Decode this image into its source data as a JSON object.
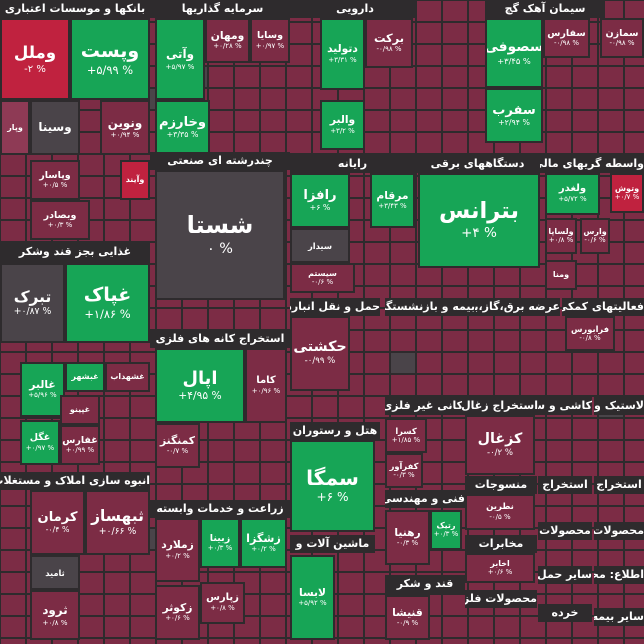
{
  "sectors": [
    {
      "title": "بانکها و موسسات اعتباری",
      "tiles": [
        {
          "name": "وملل",
          "change": "-۲ %"
        },
        {
          "name": "وپست",
          "change": "+۵/۹۹ %"
        },
        {
          "name": "ونوین",
          "change": "+۰/۹۴ %"
        },
        {
          "name": "وسینا"
        },
        {
          "name": "وپار"
        },
        {
          "name": "وآیند"
        },
        {
          "name": "وپاسار",
          "change": "+۰/۵ %"
        },
        {
          "name": "وبصادر",
          "change": "+۰/۳ %"
        }
      ]
    },
    {
      "title": "غذایی بجز قند وشکر",
      "tiles": [
        {
          "name": "تبرک",
          "change": "+۰/۸۷ %"
        },
        {
          "name": "غپاک",
          "change": "+۱/۸۶ %"
        },
        {
          "name": "غشهداب"
        },
        {
          "name": "غبشهر"
        },
        {
          "name": "غالبر",
          "change": "+۵/۹۶ %"
        },
        {
          "name": "غپینو"
        },
        {
          "name": "غگل",
          "change": "+۰/۹۷ %"
        },
        {
          "name": "غفارس",
          "change": "+۰/۹۹ %"
        }
      ]
    },
    {
      "title": "انبوه سازی املاک و مستغلات",
      "tiles": [
        {
          "name": "کرمان",
          "change": "-۰/۴ %"
        },
        {
          "name": "ثبهساز",
          "change": "+۰/۶۶ %"
        },
        {
          "name": "ثامید"
        },
        {
          "name": "ثرود",
          "change": "+۰/۸ %"
        }
      ]
    },
    {
      "title": "سرمایه گذاریها",
      "tiles": [
        {
          "name": "وآتی",
          "change": "+۵/۹۷ %"
        },
        {
          "name": "ومهان",
          "change": "+۰/۲۸ %"
        },
        {
          "name": "وسایا",
          "change": "+۰/۹۷ %"
        },
        {
          "name": "وخارزم",
          "change": "+۳/۳۵ %"
        }
      ]
    },
    {
      "title": "چندرشته ای صنعتی",
      "tiles": [
        {
          "name": "شستا",
          "change": "۰ %"
        }
      ]
    },
    {
      "title": "استخراج کانه های فلزی",
      "tiles": [
        {
          "name": "اپال",
          "change": "+۴/۹۵ %"
        },
        {
          "name": "کاما",
          "change": "+۰/۹۶ %"
        },
        {
          "name": "کمنگنز",
          "change": "-۰/۷ %"
        }
      ]
    },
    {
      "title": "زراعت و خدمات وابسته",
      "tiles": [
        {
          "name": "زملارد",
          "change": "+۰/۲ %"
        },
        {
          "name": "زبینا",
          "change": "+۰/۳ %"
        },
        {
          "name": "زشگزا",
          "change": "+۰/۲ %"
        },
        {
          "name": "زپارس",
          "change": "+۰/۸ %"
        },
        {
          "name": "زکوثر",
          "change": "+۰/۶ %"
        }
      ]
    },
    {
      "title": "دارویی",
      "tiles": [
        {
          "name": "دتولید",
          "change": "+۳/۳۱ %"
        },
        {
          "name": "برکت",
          "change": "-۰/۹۸ %"
        },
        {
          "name": "والبر",
          "change": "+۳/۲ %"
        }
      ]
    },
    {
      "title": "رایانه",
      "tiles": [
        {
          "name": "رافزا",
          "change": "+۶ %"
        },
        {
          "name": "مرقام",
          "change": "+۳/۴۳ %"
        },
        {
          "name": "سیدار"
        },
        {
          "name": "سیستم",
          "change": "-۰/۶ %"
        }
      ]
    },
    {
      "title": "حمل و نقل انبارداری",
      "tiles": [
        {
          "name": "حکشتی",
          "change": "-۰/۹۹ %"
        }
      ]
    },
    {
      "title": "هتل و رستوران",
      "tiles": [
        {
          "name": "سمگا",
          "change": "+۶ %"
        }
      ]
    },
    {
      "title": "ماشین آلات و",
      "tiles": [
        {
          "name": "لابسا",
          "change": "+۵/۹۲ %"
        }
      ]
    },
    {
      "title": "دستگاههای برقی",
      "tiles": [
        {
          "name": "بترانس",
          "change": "+۴ %"
        }
      ]
    },
    {
      "title": "سیمان آهک گچ",
      "tiles": [
        {
          "name": "سصوفی",
          "change": "+۳/۴۵ %"
        },
        {
          "name": "سفارس",
          "change": "-۰/۹۸ %"
        },
        {
          "name": "سمازن",
          "change": "-۰/۹۸ %"
        },
        {
          "name": "سفرب",
          "change": "+۲/۹۴ %"
        }
      ]
    },
    {
      "title": "واسطه گریهای مالی و",
      "tiles": [
        {
          "name": "ولغدر",
          "change": "+۵/۷۲ %"
        },
        {
          "name": "وتوش",
          "change": "+۰/۷ %"
        },
        {
          "name": "ولساپا",
          "change": "+۰/۸ %"
        },
        {
          "name": "وارس",
          "change": "-۰/۶ %"
        },
        {
          "name": "ومنا"
        }
      ]
    },
    {
      "title": "بیمه و بازنشستگی",
      "tiles": []
    },
    {
      "title": "عرضه برق،گاز،بخار",
      "tiles": []
    },
    {
      "title": "فعالیتهای کمکی",
      "tiles": [
        {
          "name": "فرابورس",
          "change": "-۰/۸ %"
        }
      ]
    },
    {
      "title": "کانی غیر فلزی",
      "tiles": [
        {
          "name": "کسرا",
          "change": "+۱/۸۵ %"
        },
        {
          "name": "کفرآور",
          "change": "-۰/۳ %"
        }
      ]
    },
    {
      "title": "استخراج زغال",
      "tiles": [
        {
          "name": "کزغال",
          "change": "-۰/۲ %"
        }
      ]
    },
    {
      "title": "کاشی و س",
      "tiles": []
    },
    {
      "title": "لاستیک و",
      "tiles": []
    },
    {
      "title": "فنی و مهندسی",
      "tiles": [
        {
          "name": "رهنیا",
          "change": "-۰/۳ %"
        },
        {
          "name": "رتیک",
          "change": "+۰/۳ %"
        }
      ]
    },
    {
      "title": "منسوجات",
      "tiles": [
        {
          "name": "نطرین",
          "change": "-۰/۵ %"
        }
      ]
    },
    {
      "title": "مخابرات",
      "tiles": [
        {
          "name": "اخابر",
          "change": "+۰/۶ %"
        }
      ]
    },
    {
      "title": "قند و شکر",
      "tiles": [
        {
          "name": "قنیشا",
          "change": "-۰/۹ %"
        }
      ]
    },
    {
      "title": "محصولات فلزی",
      "tiles": []
    },
    {
      "title": "استخراج",
      "tiles": []
    },
    {
      "title": "استخراج",
      "tiles": []
    },
    {
      "title": "محصولات",
      "tiles": []
    },
    {
      "title": "محصولات",
      "tiles": []
    },
    {
      "title": "سایر حمل",
      "tiles": []
    },
    {
      "title": "اطلاع: محصو",
      "tiles": []
    },
    {
      "title": "خرده",
      "tiles": []
    },
    {
      "title": "سایر بیمه",
      "tiles": []
    }
  ]
}
